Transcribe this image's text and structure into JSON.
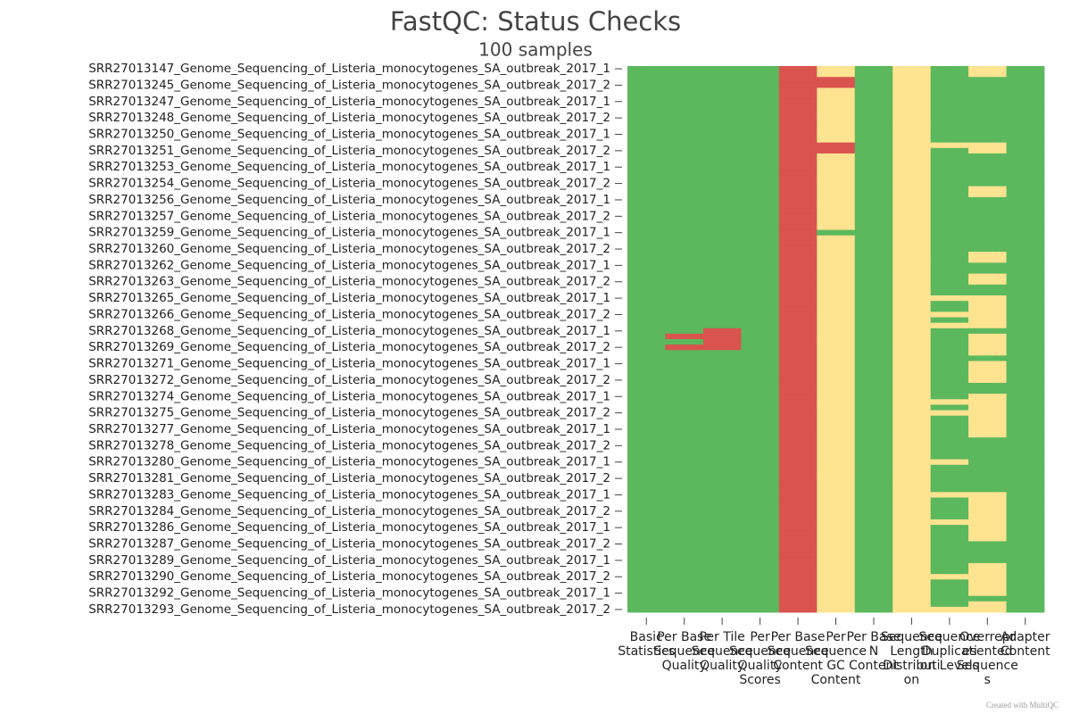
{
  "chart_data": {
    "type": "heatmap",
    "title": "FastQC: Status Checks",
    "subtitle": "100 samples",
    "credit": "Created with MultiQC",
    "x_categories": [
      "Basic Statistics",
      "Per Base Sequence Quality",
      "Per Tile Sequence Quality",
      "Per Sequence Quality Scores",
      "Per Base Sequence Content",
      "Per Sequence GC Content",
      "Per Base N Content",
      "Sequence Length Distribution",
      "Sequence Duplication Levels",
      "Overrepresented Sequences",
      "Adapter Content"
    ],
    "y_categories": [
      "SRR27013147_Genome_Sequencing_of_Listeria_monocytogenes_SA_outbreak_2017_1",
      null,
      null,
      "SRR27013245_Genome_Sequencing_of_Listeria_monocytogenes_SA_outbreak_2017_2",
      null,
      null,
      "SRR27013247_Genome_Sequencing_of_Listeria_monocytogenes_SA_outbreak_2017_1",
      null,
      null,
      "SRR27013248_Genome_Sequencing_of_Listeria_monocytogenes_SA_outbreak_2017_2",
      null,
      null,
      "SRR27013250_Genome_Sequencing_of_Listeria_monocytogenes_SA_outbreak_2017_1",
      null,
      null,
      "SRR27013251_Genome_Sequencing_of_Listeria_monocytogenes_SA_outbreak_2017_2",
      null,
      null,
      "SRR27013253_Genome_Sequencing_of_Listeria_monocytogenes_SA_outbreak_2017_1",
      null,
      null,
      "SRR27013254_Genome_Sequencing_of_Listeria_monocytogenes_SA_outbreak_2017_2",
      null,
      null,
      "SRR27013256_Genome_Sequencing_of_Listeria_monocytogenes_SA_outbreak_2017_1",
      null,
      null,
      "SRR27013257_Genome_Sequencing_of_Listeria_monocytogenes_SA_outbreak_2017_2",
      null,
      null,
      "SRR27013259_Genome_Sequencing_of_Listeria_monocytogenes_SA_outbreak_2017_1",
      null,
      null,
      "SRR27013260_Genome_Sequencing_of_Listeria_monocytogenes_SA_outbreak_2017_2",
      null,
      null,
      "SRR27013262_Genome_Sequencing_of_Listeria_monocytogenes_SA_outbreak_2017_1",
      null,
      null,
      "SRR27013263_Genome_Sequencing_of_Listeria_monocytogenes_SA_outbreak_2017_2",
      null,
      null,
      "SRR27013265_Genome_Sequencing_of_Listeria_monocytogenes_SA_outbreak_2017_1",
      null,
      null,
      "SRR27013266_Genome_Sequencing_of_Listeria_monocytogenes_SA_outbreak_2017_2",
      null,
      null,
      "SRR27013268_Genome_Sequencing_of_Listeria_monocytogenes_SA_outbreak_2017_1",
      null,
      null,
      "SRR27013269_Genome_Sequencing_of_Listeria_monocytogenes_SA_outbreak_2017_2",
      null,
      null,
      "SRR27013271_Genome_Sequencing_of_Listeria_monocytogenes_SA_outbreak_2017_1",
      null,
      null,
      "SRR27013272_Genome_Sequencing_of_Listeria_monocytogenes_SA_outbreak_2017_2",
      null,
      null,
      "SRR27013274_Genome_Sequencing_of_Listeria_monocytogenes_SA_outbreak_2017_1",
      null,
      null,
      "SRR27013275_Genome_Sequencing_of_Listeria_monocytogenes_SA_outbreak_2017_2",
      null,
      null,
      "SRR27013277_Genome_Sequencing_of_Listeria_monocytogenes_SA_outbreak_2017_1",
      null,
      null,
      "SRR27013278_Genome_Sequencing_of_Listeria_monocytogenes_SA_outbreak_2017_2",
      null,
      null,
      "SRR27013280_Genome_Sequencing_of_Listeria_monocytogenes_SA_outbreak_2017_1",
      null,
      null,
      "SRR27013281_Genome_Sequencing_of_Listeria_monocytogenes_SA_outbreak_2017_2",
      null,
      null,
      "SRR27013283_Genome_Sequencing_of_Listeria_monocytogenes_SA_outbreak_2017_1",
      null,
      null,
      "SRR27013284_Genome_Sequencing_of_Listeria_monocytogenes_SA_outbreak_2017_2",
      null,
      null,
      "SRR27013286_Genome_Sequencing_of_Listeria_monocytogenes_SA_outbreak_2017_1",
      null,
      null,
      "SRR27013287_Genome_Sequencing_of_Listeria_monocytogenes_SA_outbreak_2017_2",
      null,
      null,
      "SRR27013289_Genome_Sequencing_of_Listeria_monocytogenes_SA_outbreak_2017_1",
      null,
      null,
      "SRR27013290_Genome_Sequencing_of_Listeria_monocytogenes_SA_outbreak_2017_2",
      null,
      null,
      "SRR27013292_Genome_Sequencing_of_Listeria_monocytogenes_SA_outbreak_2017_1",
      null,
      null,
      "SRR27013293_Genome_Sequencing_of_Listeria_monocytogenes_SA_outbreak_2017_2"
    ],
    "colorscale": [
      [
        0.25,
        "#d9534f"
      ],
      [
        0.5,
        "#fee391"
      ],
      [
        1,
        "#5cb85c"
      ]
    ],
    "z": [
      [
        1,
        1,
        1,
        1,
        0.25,
        0.5,
        1,
        0.5,
        1,
        0.5,
        1
      ],
      [
        1,
        1,
        1,
        1,
        0.25,
        0.5,
        1,
        0.5,
        1,
        0.5,
        1
      ],
      [
        1,
        1,
        1,
        1,
        0.25,
        0.25,
        1,
        0.5,
        1,
        1,
        1
      ],
      [
        1,
        1,
        1,
        1,
        0.25,
        0.25,
        1,
        0.5,
        1,
        1,
        1
      ],
      [
        1,
        1,
        1,
        1,
        0.25,
        0.5,
        1,
        0.5,
        1,
        1,
        1
      ],
      [
        1,
        1,
        1,
        1,
        0.25,
        0.5,
        1,
        0.5,
        1,
        1,
        1
      ],
      [
        1,
        1,
        1,
        1,
        0.25,
        0.5,
        1,
        0.5,
        1,
        1,
        1
      ],
      [
        1,
        1,
        1,
        1,
        0.25,
        0.5,
        1,
        0.5,
        1,
        1,
        1
      ],
      [
        1,
        1,
        1,
        1,
        0.25,
        0.5,
        1,
        0.5,
        1,
        1,
        1
      ],
      [
        1,
        1,
        1,
        1,
        0.25,
        0.5,
        1,
        0.5,
        1,
        1,
        1
      ],
      [
        1,
        1,
        1,
        1,
        0.25,
        0.5,
        1,
        0.5,
        1,
        1,
        1
      ],
      [
        1,
        1,
        1,
        1,
        0.25,
        0.5,
        1,
        0.5,
        1,
        1,
        1
      ],
      [
        1,
        1,
        1,
        1,
        0.25,
        0.5,
        1,
        0.5,
        1,
        1,
        1
      ],
      [
        1,
        1,
        1,
        1,
        0.25,
        0.5,
        1,
        0.5,
        1,
        1,
        1
      ],
      [
        1,
        1,
        1,
        1,
        0.25,
        0.25,
        1,
        0.5,
        0.5,
        0.5,
        1
      ],
      [
        1,
        1,
        1,
        1,
        0.25,
        0.25,
        1,
        0.5,
        1,
        0.5,
        1
      ],
      [
        1,
        1,
        1,
        1,
        0.25,
        0.5,
        1,
        0.5,
        1,
        1,
        1
      ],
      [
        1,
        1,
        1,
        1,
        0.25,
        0.5,
        1,
        0.5,
        1,
        1,
        1
      ],
      [
        1,
        1,
        1,
        1,
        0.25,
        0.5,
        1,
        0.5,
        1,
        1,
        1
      ],
      [
        1,
        1,
        1,
        1,
        0.25,
        0.5,
        1,
        0.5,
        1,
        1,
        1
      ],
      [
        1,
        1,
        1,
        1,
        0.25,
        0.5,
        1,
        0.5,
        1,
        1,
        1
      ],
      [
        1,
        1,
        1,
        1,
        0.25,
        0.5,
        1,
        0.5,
        1,
        1,
        1
      ],
      [
        1,
        1,
        1,
        1,
        0.25,
        0.5,
        1,
        0.5,
        1,
        0.5,
        1
      ],
      [
        1,
        1,
        1,
        1,
        0.25,
        0.5,
        1,
        0.5,
        1,
        0.5,
        1
      ],
      [
        1,
        1,
        1,
        1,
        0.25,
        0.5,
        1,
        0.5,
        1,
        1,
        1
      ],
      [
        1,
        1,
        1,
        1,
        0.25,
        0.5,
        1,
        0.5,
        1,
        1,
        1
      ],
      [
        1,
        1,
        1,
        1,
        0.25,
        0.5,
        1,
        0.5,
        1,
        1,
        1
      ],
      [
        1,
        1,
        1,
        1,
        0.25,
        0.5,
        1,
        0.5,
        1,
        1,
        1
      ],
      [
        1,
        1,
        1,
        1,
        0.25,
        0.5,
        1,
        0.5,
        1,
        1,
        1
      ],
      [
        1,
        1,
        1,
        1,
        0.25,
        0.5,
        1,
        0.5,
        1,
        1,
        1
      ],
      [
        1,
        1,
        1,
        1,
        0.25,
        1,
        1,
        0.5,
        1,
        1,
        1
      ],
      [
        1,
        1,
        1,
        1,
        0.25,
        0.5,
        1,
        0.5,
        1,
        1,
        1
      ],
      [
        1,
        1,
        1,
        1,
        0.25,
        0.5,
        1,
        0.5,
        1,
        1,
        1
      ],
      [
        1,
        1,
        1,
        1,
        0.25,
        0.5,
        1,
        0.5,
        1,
        1,
        1
      ],
      [
        1,
        1,
        1,
        1,
        0.25,
        0.5,
        1,
        0.5,
        1,
        0.5,
        1
      ],
      [
        1,
        1,
        1,
        1,
        0.25,
        0.5,
        1,
        0.5,
        1,
        0.5,
        1
      ],
      [
        1,
        1,
        1,
        1,
        0.25,
        0.5,
        1,
        0.5,
        1,
        1,
        1
      ],
      [
        1,
        1,
        1,
        1,
        0.25,
        0.5,
        1,
        0.5,
        1,
        1,
        1
      ],
      [
        1,
        1,
        1,
        1,
        0.25,
        0.5,
        1,
        0.5,
        1,
        0.5,
        1
      ],
      [
        1,
        1,
        1,
        1,
        0.25,
        0.5,
        1,
        0.5,
        1,
        0.5,
        1
      ],
      [
        1,
        1,
        1,
        1,
        0.25,
        0.5,
        1,
        0.5,
        1,
        1,
        1
      ],
      [
        1,
        1,
        1,
        1,
        0.25,
        0.5,
        1,
        0.5,
        1,
        1,
        1
      ],
      [
        1,
        1,
        1,
        1,
        0.25,
        0.5,
        1,
        0.5,
        0.5,
        0.5,
        1
      ],
      [
        1,
        1,
        1,
        1,
        0.25,
        0.5,
        1,
        0.5,
        1,
        0.5,
        1
      ],
      [
        1,
        1,
        1,
        1,
        0.25,
        0.5,
        1,
        0.5,
        1,
        0.5,
        1
      ],
      [
        1,
        1,
        1,
        1,
        0.25,
        0.5,
        1,
        0.5,
        0.5,
        0.5,
        1
      ],
      [
        1,
        1,
        1,
        1,
        0.25,
        0.5,
        1,
        0.5,
        1,
        0.5,
        1
      ],
      [
        1,
        1,
        1,
        1,
        0.25,
        0.5,
        1,
        0.5,
        0.5,
        0.5,
        1
      ],
      [
        1,
        1,
        0.25,
        1,
        0.25,
        0.5,
        1,
        0.5,
        1,
        1,
        1
      ],
      [
        1,
        0.25,
        0.25,
        1,
        0.25,
        0.5,
        1,
        0.5,
        1,
        0.5,
        1
      ],
      [
        1,
        1,
        0.25,
        1,
        0.25,
        0.5,
        1,
        0.5,
        1,
        0.5,
        1
      ],
      [
        1,
        0.25,
        0.25,
        1,
        0.25,
        0.5,
        1,
        0.5,
        1,
        0.5,
        1
      ],
      [
        1,
        1,
        1,
        1,
        0.25,
        0.5,
        1,
        0.5,
        1,
        0.5,
        1
      ],
      [
        1,
        1,
        1,
        1,
        0.25,
        0.5,
        1,
        0.5,
        1,
        1,
        1
      ],
      [
        1,
        1,
        1,
        1,
        0.25,
        0.5,
        1,
        0.5,
        1,
        0.5,
        1
      ],
      [
        1,
        1,
        1,
        1,
        0.25,
        0.5,
        1,
        0.5,
        1,
        0.5,
        1
      ],
      [
        1,
        1,
        1,
        1,
        0.25,
        0.5,
        1,
        0.5,
        1,
        0.5,
        1
      ],
      [
        1,
        1,
        1,
        1,
        0.25,
        0.5,
        1,
        0.5,
        1,
        0.5,
        1
      ],
      [
        1,
        1,
        1,
        1,
        0.25,
        0.5,
        1,
        0.5,
        1,
        1,
        1
      ],
      [
        1,
        1,
        1,
        1,
        0.25,
        0.5,
        1,
        0.5,
        1,
        1,
        1
      ],
      [
        1,
        1,
        1,
        1,
        0.25,
        0.5,
        1,
        0.5,
        1,
        0.5,
        1
      ],
      [
        1,
        1,
        1,
        1,
        0.25,
        0.5,
        1,
        0.5,
        0.5,
        0.5,
        1
      ],
      [
        1,
        1,
        1,
        1,
        0.25,
        0.5,
        1,
        0.5,
        1,
        0.5,
        1
      ],
      [
        1,
        1,
        1,
        1,
        0.25,
        0.5,
        1,
        0.5,
        0.5,
        0.5,
        1
      ],
      [
        1,
        1,
        1,
        1,
        0.25,
        0.5,
        1,
        0.5,
        1,
        0.5,
        1
      ],
      [
        1,
        1,
        1,
        1,
        0.25,
        0.5,
        1,
        0.5,
        1,
        0.5,
        1
      ],
      [
        1,
        1,
        1,
        1,
        0.25,
        0.5,
        1,
        0.5,
        1,
        0.5,
        1
      ],
      [
        1,
        1,
        1,
        1,
        0.25,
        0.5,
        1,
        0.5,
        1,
        0.5,
        1
      ],
      [
        1,
        1,
        1,
        1,
        0.25,
        0.5,
        1,
        0.5,
        1,
        1,
        1
      ],
      [
        1,
        1,
        1,
        1,
        0.25,
        0.5,
        1,
        0.5,
        1,
        1,
        1
      ],
      [
        1,
        1,
        1,
        1,
        0.25,
        0.5,
        1,
        0.5,
        1,
        1,
        1
      ],
      [
        1,
        1,
        1,
        1,
        0.25,
        0.5,
        1,
        0.5,
        1,
        1,
        1
      ],
      [
        1,
        1,
        1,
        1,
        0.25,
        0.5,
        1,
        0.5,
        0.5,
        1,
        1
      ],
      [
        1,
        1,
        1,
        1,
        0.25,
        0.5,
        1,
        0.5,
        1,
        1,
        1
      ],
      [
        1,
        1,
        1,
        1,
        0.25,
        0.5,
        1,
        0.5,
        1,
        1,
        1
      ],
      [
        1,
        1,
        1,
        1,
        0.25,
        0.5,
        1,
        0.5,
        1,
        1,
        1
      ],
      [
        1,
        1,
        1,
        1,
        0.25,
        0.5,
        1,
        0.5,
        1,
        1,
        1
      ],
      [
        1,
        1,
        1,
        1,
        0.25,
        0.5,
        1,
        0.5,
        1,
        1,
        1
      ],
      [
        1,
        1,
        1,
        1,
        0.25,
        0.5,
        1,
        0.5,
        0.5,
        0.5,
        1
      ],
      [
        1,
        1,
        1,
        1,
        0.25,
        0.5,
        1,
        0.5,
        1,
        0.5,
        1
      ],
      [
        1,
        1,
        1,
        1,
        0.25,
        0.5,
        1,
        0.5,
        1,
        0.5,
        1
      ],
      [
        1,
        1,
        1,
        1,
        0.25,
        0.5,
        1,
        0.5,
        1,
        0.5,
        1
      ],
      [
        1,
        1,
        1,
        1,
        0.25,
        0.5,
        1,
        0.5,
        1,
        0.5,
        1
      ],
      [
        1,
        1,
        1,
        1,
        0.25,
        0.5,
        1,
        0.5,
        0.5,
        0.5,
        1
      ],
      [
        1,
        1,
        1,
        1,
        0.25,
        0.5,
        1,
        0.5,
        1,
        0.5,
        1
      ],
      [
        1,
        1,
        1,
        1,
        0.25,
        0.5,
        1,
        0.5,
        1,
        0.5,
        1
      ],
      [
        1,
        1,
        1,
        1,
        0.25,
        0.5,
        1,
        0.5,
        1,
        0.5,
        1
      ],
      [
        1,
        1,
        1,
        1,
        0.25,
        0.5,
        1,
        0.5,
        1,
        1,
        1
      ],
      [
        1,
        1,
        1,
        1,
        0.25,
        0.5,
        1,
        0.5,
        1,
        1,
        1
      ],
      [
        1,
        1,
        1,
        1,
        0.25,
        0.5,
        1,
        0.5,
        1,
        1,
        1
      ],
      [
        1,
        1,
        1,
        1,
        0.25,
        0.5,
        1,
        0.5,
        1,
        1,
        1
      ],
      [
        1,
        1,
        1,
        1,
        0.25,
        0.5,
        1,
        0.5,
        1,
        0.5,
        1
      ],
      [
        1,
        1,
        1,
        1,
        0.25,
        0.5,
        1,
        0.5,
        1,
        0.5,
        1
      ],
      [
        1,
        1,
        1,
        1,
        0.25,
        0.5,
        1,
        0.5,
        0.5,
        0.5,
        1
      ],
      [
        1,
        1,
        1,
        1,
        0.25,
        0.5,
        1,
        0.5,
        1,
        0.5,
        1
      ],
      [
        1,
        1,
        1,
        1,
        0.25,
        0.5,
        1,
        0.5,
        1,
        0.5,
        1
      ],
      [
        1,
        1,
        1,
        1,
        0.25,
        0.5,
        1,
        0.5,
        1,
        0.5,
        1
      ],
      [
        1,
        1,
        1,
        1,
        0.25,
        0.5,
        1,
        0.5,
        1,
        1,
        1
      ],
      [
        1,
        1,
        1,
        1,
        0.25,
        0.5,
        1,
        0.5,
        1,
        0.5,
        1
      ],
      [
        1,
        1,
        1,
        1,
        0.25,
        0.5,
        1,
        0.5,
        0.5,
        0.5,
        1
      ]
    ]
  }
}
